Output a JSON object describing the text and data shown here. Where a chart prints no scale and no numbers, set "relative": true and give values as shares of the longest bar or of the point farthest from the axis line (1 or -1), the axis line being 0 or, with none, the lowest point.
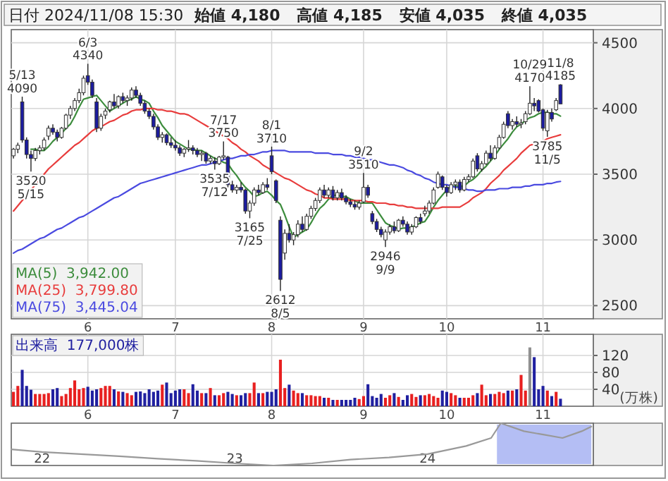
{
  "chart_data": [
    {
      "type": "candlestick",
      "title": "日付 2024/11/08 15:30",
      "annotations": [
        "始値 4,180",
        "高値 4,185",
        "安値 4,035",
        "終値 4,035"
      ],
      "categories": [
        null,
        null,
        null,
        null,
        null,
        null,
        null,
        null,
        null,
        null,
        null,
        null,
        null,
        null,
        null,
        null,
        null,
        "6",
        null,
        null,
        null,
        null,
        null,
        null,
        null,
        null,
        null,
        null,
        null,
        null,
        null,
        null,
        null,
        null,
        null,
        null,
        null,
        "7",
        null,
        null,
        null,
        null,
        null,
        null,
        null,
        null,
        null,
        null,
        null,
        null,
        null,
        null,
        null,
        null,
        null,
        null,
        null,
        null,
        null,
        "8",
        null,
        null,
        null,
        null,
        null,
        null,
        null,
        null,
        null,
        null,
        null,
        null,
        null,
        null,
        null,
        null,
        null,
        null,
        null,
        null,
        "9",
        null,
        null,
        null,
        null,
        null,
        null,
        null,
        null,
        null,
        null,
        null,
        null,
        null,
        null,
        null,
        null,
        null,
        null,
        "10",
        null,
        null,
        null,
        null,
        null,
        null,
        null,
        null,
        null,
        null,
        null,
        null,
        null,
        null,
        null,
        null,
        null,
        null,
        null,
        null,
        null,
        "11",
        null,
        null,
        null,
        null
      ],
      "ohlc": [
        [
          3640,
          3700,
          3620,
          3690
        ],
        [
          3690,
          3740,
          3660,
          3720
        ],
        [
          4050,
          4090,
          3740,
          3760
        ],
        [
          3760,
          3780,
          3620,
          3650
        ],
        [
          3650,
          3680,
          3520,
          3620
        ],
        [
          3620,
          3700,
          3600,
          3680
        ],
        [
          3680,
          3720,
          3650,
          3700
        ],
        [
          3700,
          3780,
          3680,
          3760
        ],
        [
          3790,
          3870,
          3760,
          3850
        ],
        [
          3850,
          3880,
          3800,
          3820
        ],
        [
          3820,
          3840,
          3750,
          3780
        ],
        [
          3780,
          3860,
          3770,
          3850
        ],
        [
          3850,
          3960,
          3840,
          3950
        ],
        [
          3950,
          4020,
          3920,
          4000
        ],
        [
          4000,
          4080,
          3980,
          4060
        ],
        [
          4060,
          4150,
          4040,
          4120
        ],
        [
          4120,
          4250,
          4100,
          4230
        ],
        [
          4250,
          4340,
          4180,
          4200
        ],
        [
          4200,
          4220,
          4080,
          4100
        ],
        [
          4050,
          4080,
          3820,
          3850
        ],
        [
          3850,
          3960,
          3830,
          3940
        ],
        [
          3950,
          4000,
          3920,
          3980
        ],
        [
          3990,
          4060,
          3970,
          4050
        ],
        [
          4050,
          4110,
          4000,
          4020
        ],
        [
          4020,
          4100,
          4000,
          4090
        ],
        [
          4090,
          4120,
          4040,
          4060
        ],
        [
          4060,
          4100,
          4020,
          4080
        ],
        [
          4080,
          4160,
          4060,
          4140
        ],
        [
          4140,
          4170,
          4080,
          4100
        ],
        [
          4100,
          4120,
          4020,
          4040
        ],
        [
          4040,
          4060,
          3960,
          3980
        ],
        [
          3980,
          4000,
          3920,
          3940
        ],
        [
          3940,
          3960,
          3840,
          3860
        ],
        [
          3860,
          3880,
          3760,
          3780
        ],
        [
          3780,
          3820,
          3740,
          3800
        ],
        [
          3800,
          3810,
          3720,
          3740
        ],
        [
          3740,
          3780,
          3700,
          3720
        ],
        [
          3720,
          3760,
          3680,
          3700
        ],
        [
          3700,
          3720,
          3640,
          3660
        ],
        [
          3660,
          3700,
          3630,
          3690
        ],
        [
          3690,
          3760,
          3670,
          3700
        ],
        [
          3700,
          3720,
          3650,
          3680
        ],
        [
          3680,
          3700,
          3630,
          3650
        ],
        [
          3650,
          3680,
          3600,
          3660
        ],
        [
          3660,
          3670,
          3580,
          3600
        ],
        [
          3600,
          3640,
          3580,
          3620
        ],
        [
          3600,
          3630,
          3535,
          3580
        ],
        [
          3580,
          3640,
          3570,
          3630
        ],
        [
          3630,
          3750,
          3610,
          3640
        ],
        [
          3630,
          3640,
          3400,
          3420
        ],
        [
          3420,
          3450,
          3360,
          3380
        ],
        [
          3380,
          3420,
          3350,
          3400
        ],
        [
          3400,
          3440,
          3360,
          3380
        ],
        [
          3380,
          3390,
          3200,
          3220
        ],
        [
          3220,
          3300,
          3165,
          3280
        ],
        [
          3280,
          3400,
          3260,
          3380
        ],
        [
          3380,
          3420,
          3340,
          3360
        ],
        [
          3360,
          3440,
          3350,
          3420
        ],
        [
          3420,
          3470,
          3380,
          3400
        ],
        [
          3640,
          3710,
          3500,
          3520
        ],
        [
          3450,
          3460,
          3280,
          3300
        ],
        [
          3150,
          3180,
          2612,
          2700
        ],
        [
          2900,
          3080,
          2850,
          3050
        ],
        [
          3050,
          3120,
          2980,
          3000
        ],
        [
          3000,
          3060,
          2960,
          3040
        ],
        [
          3040,
          3150,
          3020,
          3120
        ],
        [
          3120,
          3180,
          3060,
          3080
        ],
        [
          3080,
          3200,
          3070,
          3180
        ],
        [
          3180,
          3260,
          3160,
          3240
        ],
        [
          3240,
          3320,
          3220,
          3300
        ],
        [
          3300,
          3400,
          3280,
          3380
        ],
        [
          3380,
          3420,
          3320,
          3340
        ],
        [
          3340,
          3400,
          3320,
          3380
        ],
        [
          3380,
          3410,
          3300,
          3320
        ],
        [
          3320,
          3380,
          3300,
          3360
        ],
        [
          3360,
          3390,
          3300,
          3320
        ],
        [
          3320,
          3340,
          3270,
          3290
        ],
        [
          3290,
          3310,
          3250,
          3270
        ],
        [
          3270,
          3300,
          3230,
          3250
        ],
        [
          3250,
          3300,
          3230,
          3280
        ],
        [
          3290,
          3510,
          3280,
          3400
        ],
        [
          3400,
          3420,
          3320,
          3340
        ],
        [
          3200,
          3220,
          3120,
          3140
        ],
        [
          3140,
          3160,
          3060,
          3080
        ],
        [
          3080,
          3100,
          3020,
          3040
        ],
        [
          3000,
          3080,
          2946,
          3060
        ],
        [
          3060,
          3120,
          3040,
          3100
        ],
        [
          3100,
          3140,
          3050,
          3070
        ],
        [
          3070,
          3160,
          3060,
          3150
        ],
        [
          3150,
          3180,
          3100,
          3120
        ],
        [
          3120,
          3140,
          3040,
          3060
        ],
        [
          3060,
          3120,
          3040,
          3100
        ],
        [
          3100,
          3180,
          3090,
          3170
        ],
        [
          3170,
          3200,
          3120,
          3140
        ],
        [
          3200,
          3260,
          3180,
          3220
        ],
        [
          3220,
          3300,
          3200,
          3280
        ],
        [
          3280,
          3400,
          3270,
          3380
        ],
        [
          3400,
          3520,
          3390,
          3500
        ],
        [
          3480,
          3490,
          3380,
          3400
        ],
        [
          3400,
          3420,
          3330,
          3360
        ],
        [
          3360,
          3440,
          3350,
          3420
        ],
        [
          3420,
          3460,
          3380,
          3440
        ],
        [
          3440,
          3460,
          3360,
          3380
        ],
        [
          3380,
          3480,
          3370,
          3460
        ],
        [
          3460,
          3500,
          3440,
          3480
        ],
        [
          3480,
          3620,
          3470,
          3600
        ],
        [
          3640,
          3660,
          3520,
          3540
        ],
        [
          3540,
          3600,
          3520,
          3580
        ],
        [
          3580,
          3680,
          3570,
          3660
        ],
        [
          3660,
          3720,
          3600,
          3620
        ],
        [
          3620,
          3720,
          3610,
          3700
        ],
        [
          3700,
          3800,
          3690,
          3780
        ],
        [
          3780,
          3900,
          3770,
          3880
        ],
        [
          3960,
          3980,
          3850,
          3870
        ],
        [
          3870,
          3920,
          3840,
          3900
        ],
        [
          3900,
          3940,
          3860,
          3880
        ],
        [
          3880,
          3920,
          3850,
          3890
        ],
        [
          3900,
          3980,
          3880,
          3960
        ],
        [
          3960,
          4170,
          3950,
          4040
        ],
        [
          4040,
          4080,
          3980,
          4020
        ],
        [
          4060,
          4070,
          3970,
          3980
        ],
        [
          3990,
          4000,
          3830,
          3850
        ],
        [
          3830,
          3990,
          3785,
          3970
        ],
        [
          3970,
          4000,
          3900,
          3920
        ],
        [
          3990,
          4080,
          3980,
          4060
        ],
        [
          4180,
          4185,
          4035,
          4035
        ]
      ],
      "value_labels": [
        null,
        null,
        "5/13\n4090",
        null,
        "3520\n5/15",
        null,
        null,
        null,
        null,
        null,
        null,
        null,
        null,
        null,
        null,
        null,
        null,
        "6/3\n4340",
        null,
        null,
        null,
        null,
        null,
        null,
        null,
        null,
        null,
        null,
        null,
        null,
        null,
        null,
        null,
        null,
        null,
        null,
        null,
        null,
        null,
        null,
        null,
        null,
        null,
        null,
        null,
        null,
        "3535\n7/12",
        null,
        "7/17\n3750",
        null,
        null,
        null,
        null,
        null,
        "3165\n7/25",
        null,
        null,
        null,
        null,
        "8/1\n3710",
        null,
        "2612\n8/5",
        null,
        null,
        null,
        null,
        null,
        null,
        null,
        null,
        null,
        null,
        null,
        null,
        null,
        null,
        null,
        null,
        null,
        null,
        "9/2\n3510",
        null,
        null,
        null,
        null,
        "2946\n9/9",
        null,
        null,
        null,
        null,
        null,
        null,
        null,
        null,
        null,
        null,
        null,
        null,
        null,
        null,
        null,
        null,
        null,
        null,
        null,
        null,
        null,
        null,
        null,
        null,
        null,
        null,
        null,
        null,
        null,
        null,
        null,
        null,
        "10/29\n4170",
        null,
        null,
        null,
        "3785\n11/5",
        null,
        null,
        "11/8\n4185"
      ],
      "colors": [
        "#ffffff",
        "#ffffff",
        "#1c1ca0",
        "#1c1ca0",
        "#1c1ca0",
        "#ffffff",
        "#ffffff",
        "#ffffff",
        "#ffffff",
        "#1c1ca0",
        "#1c1ca0",
        "#ffffff",
        "#ffffff",
        "#ffffff",
        "#ffffff",
        "#ffffff",
        "#ffffff",
        "#1c1ca0",
        "#1c1ca0",
        "#1c1ca0",
        "#ffffff",
        "#ffffff",
        "#ffffff",
        "#1c1ca0",
        "#ffffff",
        "#1c1ca0",
        "#ffffff",
        "#ffffff",
        "#1c1ca0",
        "#1c1ca0",
        "#1c1ca0",
        "#1c1ca0",
        "#1c1ca0",
        "#1c1ca0",
        "#ffffff",
        "#1c1ca0",
        "#1c1ca0",
        "#1c1ca0",
        "#1c1ca0",
        "#ffffff",
        "#ffffff",
        "#1c1ca0",
        "#1c1ca0",
        "#ffffff",
        "#1c1ca0",
        "#ffffff",
        "#1c1ca0",
        "#ffffff",
        "#ffffff",
        "#1c1ca0",
        "#1c1ca0",
        "#ffffff",
        "#1c1ca0",
        "#1c1ca0",
        "#ffffff",
        "#ffffff",
        "#1c1ca0",
        "#ffffff",
        "#1c1ca0",
        "#1c1ca0",
        "#1c1ca0",
        "#1c1ca0",
        "#ffffff",
        "#1c1ca0",
        "#ffffff",
        "#ffffff",
        "#1c1ca0",
        "#ffffff",
        "#ffffff",
        "#ffffff",
        "#ffffff",
        "#1c1ca0",
        "#ffffff",
        "#1c1ca0",
        "#ffffff",
        "#1c1ca0",
        "#1c1ca0",
        "#1c1ca0",
        "#1c1ca0",
        "#ffffff",
        "#ffffff",
        "#1c1ca0",
        "#1c1ca0",
        "#1c1ca0",
        "#1c1ca0",
        "#ffffff",
        "#ffffff",
        "#1c1ca0",
        "#ffffff",
        "#1c1ca0",
        "#1c1ca0",
        "#ffffff",
        "#ffffff",
        "#1c1ca0",
        "#ffffff",
        "#ffffff",
        "#ffffff",
        "#ffffff",
        "#1c1ca0",
        "#1c1ca0",
        "#ffffff",
        "#ffffff",
        "#1c1ca0",
        "#ffffff",
        "#ffffff",
        "#ffffff",
        "#1c1ca0",
        "#ffffff",
        "#ffffff",
        "#1c1ca0",
        "#ffffff",
        "#ffffff",
        "#ffffff",
        "#1c1ca0",
        "#ffffff",
        "#1c1ca0",
        "#ffffff",
        "#ffffff",
        "#ffffff",
        "#1c1ca0",
        "#1c1ca0",
        "#1c1ca0",
        "#ffffff",
        "#1c1ca0",
        "#ffffff",
        "#1c1ca0"
      ],
      "series": [
        {
          "type": "line",
          "name": "MA(5)  3,942.00",
          "color": "#3c8c3c",
          "values": [
            null,
            null,
            null,
            null,
            3690,
            3690,
            3680,
            3680,
            3710,
            3750,
            3780,
            3810,
            3850,
            3880,
            3940,
            4010,
            4070,
            4080,
            4090,
            4100,
            4060,
            4020,
            3980,
            4000,
            4020,
            4040,
            4060,
            4070,
            4090,
            4070,
            4060,
            4040,
            3980,
            3930,
            3870,
            3830,
            3790,
            3750,
            3730,
            3710,
            3690,
            3690,
            3680,
            3680,
            3660,
            3640,
            3620,
            3610,
            3590,
            3580,
            3530,
            3490,
            3440,
            3400,
            3370,
            3330,
            3340,
            3360,
            3370,
            3340,
            3300,
            3270,
            3190,
            3100,
            3020,
            3040,
            3060,
            3080,
            3130,
            3190,
            3240,
            3270,
            3310,
            3340,
            3340,
            3330,
            3330,
            3310,
            3300,
            3280,
            3280,
            3280,
            3280,
            3230,
            3180,
            3130,
            3110,
            3100,
            3080,
            3090,
            3090,
            3100,
            3110,
            3130,
            3140,
            3190,
            3250,
            3300,
            3340,
            3380,
            3410,
            3410,
            3410,
            3410,
            3440,
            3460,
            3490,
            3530,
            3560,
            3600,
            3640,
            3690,
            3730,
            3770,
            3820,
            3860,
            3880,
            3910,
            3930,
            3940,
            3960,
            3970,
            3970,
            3960,
            3960,
            3942
          ]
        },
        {
          "type": "line",
          "name": "MA(25)  3,799.80",
          "color": "#e83c3c",
          "values": [
            3220,
            3260,
            3300,
            3340,
            3380,
            3420,
            3460,
            3500,
            3540,
            3570,
            3600,
            3630,
            3660,
            3690,
            3720,
            3740,
            3770,
            3800,
            3830,
            3850,
            3860,
            3880,
            3900,
            3910,
            3930,
            3950,
            3960,
            3980,
            3990,
            3990,
            4000,
            4000,
            4000,
            3990,
            3990,
            3980,
            3980,
            3970,
            3960,
            3960,
            3950,
            3930,
            3910,
            3890,
            3870,
            3850,
            3830,
            3810,
            3790,
            3770,
            3740,
            3720,
            3690,
            3670,
            3640,
            3620,
            3600,
            3570,
            3550,
            3530,
            3510,
            3490,
            3470,
            3460,
            3440,
            3420,
            3400,
            3380,
            3370,
            3350,
            3340,
            3320,
            3320,
            3310,
            3310,
            3310,
            3310,
            3300,
            3300,
            3300,
            3300,
            3290,
            3290,
            3280,
            3280,
            3280,
            3270,
            3270,
            3260,
            3260,
            3250,
            3250,
            3240,
            3240,
            3240,
            3240,
            3240,
            3240,
            3250,
            3250,
            3250,
            3250,
            3250,
            3270,
            3290,
            3320,
            3340,
            3360,
            3390,
            3430,
            3460,
            3490,
            3530,
            3560,
            3590,
            3620,
            3660,
            3690,
            3720,
            3730,
            3740,
            3750,
            3770,
            3780,
            3790,
            3799.8
          ]
        },
        {
          "type": "line",
          "name": "MA(75)  3,445.04",
          "color": "#4a4ae0",
          "values": [
            2900,
            2920,
            2930,
            2950,
            2970,
            2990,
            3010,
            3020,
            3040,
            3060,
            3080,
            3090,
            3110,
            3130,
            3150,
            3170,
            3180,
            3200,
            3220,
            3240,
            3260,
            3280,
            3300,
            3320,
            3330,
            3350,
            3370,
            3390,
            3410,
            3430,
            3440,
            3450,
            3460,
            3470,
            3480,
            3490,
            3500,
            3510,
            3520,
            3530,
            3540,
            3550,
            3560,
            3570,
            3570,
            3580,
            3590,
            3600,
            3610,
            3620,
            3620,
            3630,
            3640,
            3640,
            3650,
            3650,
            3660,
            3670,
            3670,
            3680,
            3680,
            3680,
            3680,
            3670,
            3670,
            3670,
            3670,
            3670,
            3670,
            3660,
            3660,
            3660,
            3660,
            3650,
            3650,
            3650,
            3640,
            3640,
            3630,
            3630,
            3620,
            3610,
            3610,
            3600,
            3590,
            3580,
            3570,
            3570,
            3560,
            3550,
            3530,
            3520,
            3500,
            3490,
            3470,
            3460,
            3440,
            3430,
            3420,
            3420,
            3410,
            3400,
            3400,
            3390,
            3380,
            3380,
            3370,
            3370,
            3380,
            3380,
            3380,
            3390,
            3390,
            3390,
            3400,
            3400,
            3400,
            3410,
            3410,
            3420,
            3420,
            3420,
            3430,
            3430,
            3440,
            3445.04
          ]
        }
      ],
      "ylim": [
        2400,
        4600
      ],
      "yticks": [
        2500,
        3000,
        3500,
        4000,
        4500
      ],
      "grid": true,
      "legend": "bottom left"
    },
    {
      "type": "bar",
      "ylabel": "(万株)",
      "categories": [
        null,
        null,
        null,
        null,
        null,
        null,
        null,
        null,
        null,
        null,
        null,
        null,
        null,
        null,
        null,
        null,
        null,
        "6",
        null,
        null,
        null,
        null,
        null,
        null,
        null,
        null,
        null,
        null,
        null,
        null,
        null,
        null,
        null,
        null,
        null,
        null,
        null,
        "7",
        null,
        null,
        null,
        null,
        null,
        null,
        null,
        null,
        null,
        null,
        null,
        null,
        null,
        null,
        null,
        null,
        null,
        null,
        null,
        null,
        null,
        "8",
        null,
        null,
        null,
        null,
        null,
        null,
        null,
        null,
        null,
        null,
        null,
        null,
        null,
        null,
        null,
        null,
        null,
        null,
        null,
        null,
        "9",
        null,
        null,
        null,
        null,
        null,
        null,
        null,
        null,
        null,
        null,
        null,
        null,
        null,
        null,
        null,
        null,
        null,
        null,
        "10",
        null,
        null,
        null,
        null,
        null,
        null,
        null,
        null,
        null,
        null,
        null,
        null,
        null,
        null,
        null,
        null,
        null,
        null,
        null,
        null,
        null,
        "11",
        null,
        null,
        null,
        null
      ],
      "series": [
        {
          "name": "出来高  177,000株",
          "color": "#2020a0",
          "values": [
            34,
            48,
            86,
            48,
            39,
            29,
            29,
            29,
            31,
            40,
            43,
            24,
            29,
            43,
            61,
            40,
            43,
            46,
            37,
            40,
            43,
            48,
            48,
            40,
            35,
            34,
            31,
            26,
            34,
            35,
            31,
            40,
            34,
            37,
            51,
            56,
            31,
            37,
            40,
            40,
            31,
            52,
            37,
            31,
            31,
            43,
            26,
            26,
            31,
            34,
            29,
            26,
            26,
            31,
            31,
            56,
            31,
            31,
            34,
            34,
            40,
            110,
            43,
            51,
            37,
            31,
            31,
            26,
            26,
            24,
            24,
            20,
            20,
            15,
            15,
            15,
            15,
            15,
            20,
            17,
            24,
            52,
            24,
            20,
            29,
            20,
            26,
            31,
            22,
            15,
            26,
            29,
            22,
            26,
            26,
            29,
            24,
            20,
            37,
            34,
            31,
            26,
            20,
            20,
            20,
            26,
            31,
            51,
            26,
            29,
            29,
            34,
            31,
            37,
            37,
            40,
            74,
            37,
            139,
            116,
            40,
            48,
            37,
            24,
            34,
            17.7
          ],
          "colors": [
            "#e82020",
            "#e82020",
            "#2020a0",
            "#2020a0",
            "#2020a0",
            "#e82020",
            "#e82020",
            "#e82020",
            "#e82020",
            "#2020a0",
            "#2020a0",
            "#e82020",
            "#e82020",
            "#e82020",
            "#e82020",
            "#e82020",
            "#e82020",
            "#2020a0",
            "#2020a0",
            "#2020a0",
            "#e82020",
            "#e82020",
            "#e82020",
            "#2020a0",
            "#e82020",
            "#2020a0",
            "#e82020",
            "#e82020",
            "#2020a0",
            "#2020a0",
            "#2020a0",
            "#2020a0",
            "#2020a0",
            "#2020a0",
            "#e82020",
            "#2020a0",
            "#2020a0",
            "#2020a0",
            "#2020a0",
            "#e82020",
            "#e82020",
            "#2020a0",
            "#2020a0",
            "#e82020",
            "#2020a0",
            "#e82020",
            "#2020a0",
            "#e82020",
            "#e82020",
            "#2020a0",
            "#2020a0",
            "#e82020",
            "#2020a0",
            "#2020a0",
            "#e82020",
            "#e82020",
            "#2020a0",
            "#e82020",
            "#2020a0",
            "#2020a0",
            "#2020a0",
            "#e82020",
            "#e82020",
            "#2020a0",
            "#e82020",
            "#e82020",
            "#2020a0",
            "#e82020",
            "#e82020",
            "#e82020",
            "#e82020",
            "#2020a0",
            "#e82020",
            "#2020a0",
            "#e82020",
            "#2020a0",
            "#2020a0",
            "#2020a0",
            "#2020a0",
            "#e82020",
            "#e82020",
            "#2020a0",
            "#2020a0",
            "#2020a0",
            "#2020a0",
            "#e82020",
            "#e82020",
            "#2020a0",
            "#e82020",
            "#2020a0",
            "#2020a0",
            "#e82020",
            "#e82020",
            "#2020a0",
            "#e82020",
            "#e82020",
            "#e82020",
            "#e82020",
            "#2020a0",
            "#2020a0",
            "#e82020",
            "#e82020",
            "#2020a0",
            "#e82020",
            "#e82020",
            "#e82020",
            "#2020a0",
            "#e82020",
            "#e82020",
            "#2020a0",
            "#e82020",
            "#e82020",
            "#e82020",
            "#2020a0",
            "#e82020",
            "#2020a0",
            "#e82020",
            "#e82020",
            "#909090",
            "#2020a0",
            "#2020a0",
            "#2020a0",
            "#e82020",
            "#2020a0",
            "#e82020",
            "#2020a0"
          ]
        }
      ],
      "ylim": [
        0,
        170
      ],
      "yticks": [
        40,
        80,
        120
      ],
      "grid": true,
      "legend": "top left"
    },
    {
      "type": "line",
      "relative": true,
      "color": "#999999",
      "tick_labels": "x",
      "x": [
        21.84,
        22.0,
        22.2,
        22.4,
        22.6,
        22.8,
        23.0,
        23.2,
        23.4,
        23.6,
        23.8,
        24.0,
        24.2,
        24.33,
        24.38,
        24.5,
        24.6,
        24.7,
        24.8,
        24.85
      ],
      "values": [
        0.38,
        0.32,
        0.27,
        0.22,
        0.16,
        0.11,
        0.05,
        0,
        0.05,
        0.14,
        0.19,
        0.27,
        0.46,
        0.65,
        1,
        0.81,
        0.73,
        0.65,
        0.81,
        0.92
      ],
      "xlim": [
        21.84,
        24.86
      ],
      "xticks": [
        22,
        23,
        24
      ],
      "bands": [
        {
          "axis": "x",
          "from": 24.36,
          "to": 24.85,
          "color": "#b4bef4"
        }
      ]
    }
  ]
}
